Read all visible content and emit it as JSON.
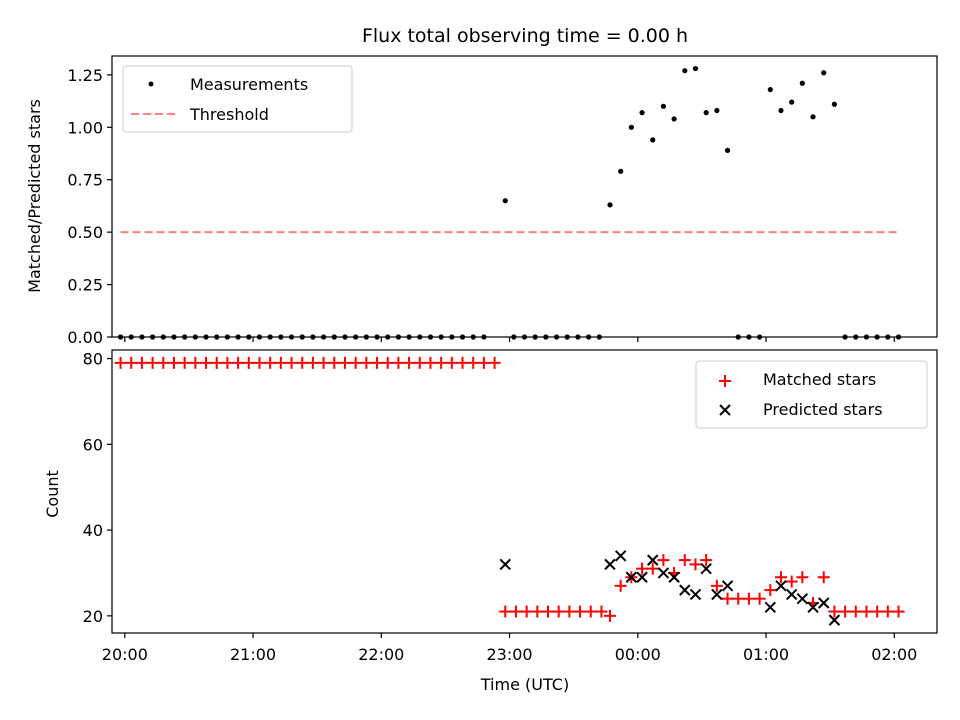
{
  "chart_data": [
    {
      "type": "scatter",
      "title": "Flux total observing time = 0.00 h",
      "xlabel": "",
      "ylabel": "Matched/Predicted stars",
      "xlim": [
        "19:54",
        "02:20"
      ],
      "ylim": [
        0,
        1.34
      ],
      "yticks": [
        "0.00",
        "0.25",
        "0.50",
        "0.75",
        "1.00",
        "1.25"
      ],
      "grid": false,
      "legend": "upper-left",
      "series": [
        {
          "name": "Measurements",
          "style": "dot",
          "color": "#000000",
          "points": [
            [
              "19:58",
              0
            ],
            [
              "20:03",
              0
            ],
            [
              "20:08",
              0
            ],
            [
              "20:13",
              0
            ],
            [
              "20:18",
              0
            ],
            [
              "20:23",
              0
            ],
            [
              "20:28",
              0
            ],
            [
              "20:33",
              0
            ],
            [
              "20:38",
              0
            ],
            [
              "20:43",
              0
            ],
            [
              "20:48",
              0
            ],
            [
              "20:53",
              0
            ],
            [
              "20:58",
              0
            ],
            [
              "21:03",
              0
            ],
            [
              "21:08",
              0
            ],
            [
              "21:13",
              0
            ],
            [
              "21:18",
              0
            ],
            [
              "21:23",
              0
            ],
            [
              "21:28",
              0
            ],
            [
              "21:33",
              0
            ],
            [
              "21:38",
              0
            ],
            [
              "21:43",
              0
            ],
            [
              "21:48",
              0
            ],
            [
              "21:53",
              0
            ],
            [
              "21:58",
              0
            ],
            [
              "22:03",
              0
            ],
            [
              "22:08",
              0
            ],
            [
              "22:13",
              0
            ],
            [
              "22:18",
              0
            ],
            [
              "22:23",
              0
            ],
            [
              "22:28",
              0
            ],
            [
              "22:33",
              0
            ],
            [
              "22:38",
              0
            ],
            [
              "22:43",
              0
            ],
            [
              "22:48",
              0
            ],
            [
              "22:58",
              0.65
            ],
            [
              "23:02",
              0
            ],
            [
              "23:07",
              0
            ],
            [
              "23:12",
              0
            ],
            [
              "23:17",
              0
            ],
            [
              "23:22",
              0
            ],
            [
              "23:27",
              0
            ],
            [
              "23:32",
              0
            ],
            [
              "23:37",
              0
            ],
            [
              "23:42",
              0
            ],
            [
              "23:47",
              0.63
            ],
            [
              "23:52",
              0.79
            ],
            [
              "23:57",
              1.0
            ],
            [
              "00:02",
              1.07
            ],
            [
              "00:07",
              0.94
            ],
            [
              "00:12",
              1.1
            ],
            [
              "00:17",
              1.04
            ],
            [
              "00:22",
              1.27
            ],
            [
              "00:27",
              1.28
            ],
            [
              "00:32",
              1.07
            ],
            [
              "00:37",
              1.08
            ],
            [
              "00:42",
              0.89
            ],
            [
              "00:47",
              0
            ],
            [
              "00:52",
              0
            ],
            [
              "00:57",
              0
            ],
            [
              "01:02",
              1.18
            ],
            [
              "01:07",
              1.08
            ],
            [
              "01:12",
              1.12
            ],
            [
              "01:17",
              1.21
            ],
            [
              "01:22",
              1.05
            ],
            [
              "01:27",
              1.26
            ],
            [
              "01:32",
              1.11
            ],
            [
              "01:37",
              0
            ],
            [
              "01:42",
              0
            ],
            [
              "01:47",
              0
            ],
            [
              "01:52",
              0
            ],
            [
              "01:57",
              0
            ],
            [
              "02:02",
              0
            ]
          ]
        },
        {
          "name": "Threshold",
          "style": "dashed-line",
          "color": "#ff8080",
          "points": [
            [
              "19:58",
              0.5
            ],
            [
              "02:02",
              0.5
            ]
          ]
        }
      ]
    },
    {
      "type": "scatter",
      "title": "",
      "xlabel": "Time (UTC)",
      "ylabel": "Count",
      "xlim": [
        "19:54",
        "02:20"
      ],
      "ylim": [
        16,
        82
      ],
      "xticks": [
        "20:00",
        "21:00",
        "22:00",
        "23:00",
        "00:00",
        "01:00",
        "02:00"
      ],
      "yticks": [
        "20",
        "40",
        "60",
        "80"
      ],
      "grid": false,
      "legend": "upper-right",
      "series": [
        {
          "name": "Matched stars",
          "marker": "plus",
          "color": "#ff0000",
          "points": [
            [
              "19:58",
              79
            ],
            [
              "20:03",
              79
            ],
            [
              "20:08",
              79
            ],
            [
              "20:13",
              79
            ],
            [
              "20:18",
              79
            ],
            [
              "20:23",
              79
            ],
            [
              "20:28",
              79
            ],
            [
              "20:33",
              79
            ],
            [
              "20:38",
              79
            ],
            [
              "20:43",
              79
            ],
            [
              "20:48",
              79
            ],
            [
              "20:53",
              79
            ],
            [
              "20:58",
              79
            ],
            [
              "21:03",
              79
            ],
            [
              "21:08",
              79
            ],
            [
              "21:13",
              79
            ],
            [
              "21:18",
              79
            ],
            [
              "21:23",
              79
            ],
            [
              "21:28",
              79
            ],
            [
              "21:33",
              79
            ],
            [
              "21:38",
              79
            ],
            [
              "21:43",
              79
            ],
            [
              "21:48",
              79
            ],
            [
              "21:53",
              79
            ],
            [
              "21:58",
              79
            ],
            [
              "22:03",
              79
            ],
            [
              "22:08",
              79
            ],
            [
              "22:13",
              79
            ],
            [
              "22:18",
              79
            ],
            [
              "22:23",
              79
            ],
            [
              "22:28",
              79
            ],
            [
              "22:33",
              79
            ],
            [
              "22:38",
              79
            ],
            [
              "22:43",
              79
            ],
            [
              "22:48",
              79
            ],
            [
              "22:53",
              79
            ],
            [
              "22:58",
              21
            ],
            [
              "23:03",
              21
            ],
            [
              "23:08",
              21
            ],
            [
              "23:13",
              21
            ],
            [
              "23:18",
              21
            ],
            [
              "23:23",
              21
            ],
            [
              "23:28",
              21
            ],
            [
              "23:33",
              21
            ],
            [
              "23:38",
              21
            ],
            [
              "23:43",
              21
            ],
            [
              "23:47",
              20
            ],
            [
              "23:52",
              27
            ],
            [
              "23:57",
              29
            ],
            [
              "00:02",
              31
            ],
            [
              "00:07",
              31
            ],
            [
              "00:12",
              33
            ],
            [
              "00:17",
              30
            ],
            [
              "00:22",
              33
            ],
            [
              "00:27",
              32
            ],
            [
              "00:32",
              33
            ],
            [
              "00:37",
              27
            ],
            [
              "00:42",
              24
            ],
            [
              "00:47",
              24
            ],
            [
              "00:52",
              24
            ],
            [
              "00:57",
              24
            ],
            [
              "01:02",
              26
            ],
            [
              "01:07",
              29
            ],
            [
              "01:12",
              28
            ],
            [
              "01:17",
              29
            ],
            [
              "01:22",
              23
            ],
            [
              "01:27",
              29
            ],
            [
              "01:32",
              21
            ],
            [
              "01:37",
              21
            ],
            [
              "01:42",
              21
            ],
            [
              "01:47",
              21
            ],
            [
              "01:52",
              21
            ],
            [
              "01:57",
              21
            ],
            [
              "02:02",
              21
            ]
          ]
        },
        {
          "name": "Predicted stars",
          "marker": "x",
          "color": "#000000",
          "points": [
            [
              "22:58",
              32
            ],
            [
              "23:47",
              32
            ],
            [
              "23:52",
              34
            ],
            [
              "23:57",
              29
            ],
            [
              "00:02",
              29
            ],
            [
              "00:07",
              33
            ],
            [
              "00:12",
              30
            ],
            [
              "00:17",
              29
            ],
            [
              "00:22",
              26
            ],
            [
              "00:27",
              25
            ],
            [
              "00:32",
              31
            ],
            [
              "00:37",
              25
            ],
            [
              "00:42",
              27
            ],
            [
              "01:02",
              22
            ],
            [
              "01:07",
              27
            ],
            [
              "01:12",
              25
            ],
            [
              "01:17",
              24
            ],
            [
              "01:22",
              22
            ],
            [
              "01:27",
              23
            ],
            [
              "01:32",
              19
            ]
          ]
        }
      ]
    }
  ]
}
